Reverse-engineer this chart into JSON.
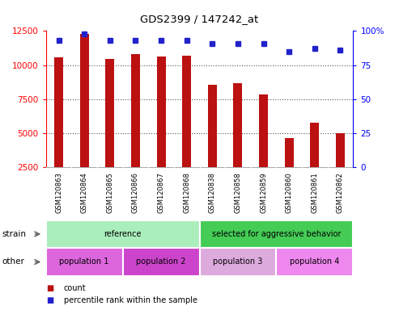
{
  "title": "GDS2399 / 147242_at",
  "samples": [
    "GSM120863",
    "GSM120864",
    "GSM120865",
    "GSM120866",
    "GSM120867",
    "GSM120868",
    "GSM120838",
    "GSM120858",
    "GSM120859",
    "GSM120860",
    "GSM120861",
    "GSM120862"
  ],
  "counts": [
    10600,
    12300,
    10450,
    10800,
    10650,
    10700,
    8550,
    8650,
    7850,
    4680,
    5750,
    5000
  ],
  "percentile_ranks": [
    93,
    98,
    93,
    93,
    93,
    93,
    91,
    91,
    91,
    85,
    87,
    86
  ],
  "ylim_left": [
    2500,
    12500
  ],
  "ylim_right": [
    0,
    100
  ],
  "yticks_left": [
    2500,
    5000,
    7500,
    10000,
    12500
  ],
  "yticks_right": [
    0,
    25,
    50,
    75,
    100
  ],
  "bar_color": "#bb1111",
  "dot_color": "#2222cc",
  "strain_groups": [
    {
      "label": "reference",
      "start": 0,
      "end": 6,
      "color": "#aaeebb"
    },
    {
      "label": "selected for aggressive behavior",
      "start": 6,
      "end": 12,
      "color": "#44cc55"
    }
  ],
  "other_groups": [
    {
      "label": "population 1",
      "start": 0,
      "end": 3,
      "color": "#dd66dd"
    },
    {
      "label": "population 2",
      "start": 3,
      "end": 6,
      "color": "#cc44cc"
    },
    {
      "label": "population 3",
      "start": 6,
      "end": 9,
      "color": "#ddaadd"
    },
    {
      "label": "population 4",
      "start": 9,
      "end": 12,
      "color": "#ee88ee"
    }
  ],
  "legend_count_color": "#bb1111",
  "legend_pct_color": "#2222cc",
  "background_color": "#ffffff",
  "grid_color": "#555555",
  "tick_area_color": "#cccccc",
  "bar_width": 0.35
}
